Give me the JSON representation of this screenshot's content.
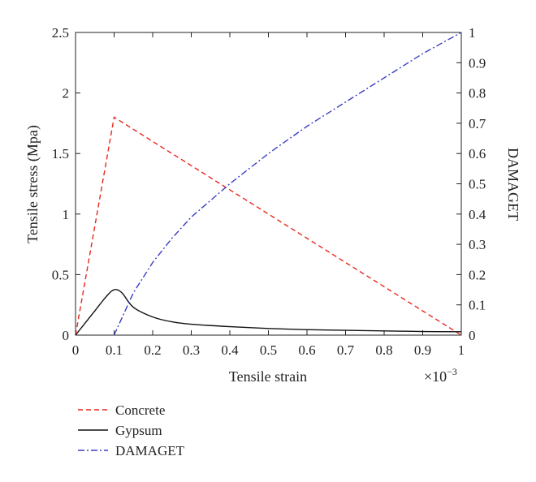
{
  "chart_data": {
    "type": "line",
    "xlabel": "Tensile strain",
    "x_multiplier": "×10",
    "x_multiplier_exp": "−3",
    "ylabel": "Tensile stress (Mpa)",
    "y2label": "DAMAGET",
    "xlim": [
      0,
      1
    ],
    "ylim": [
      0,
      2.5
    ],
    "y2lim": [
      0,
      1
    ],
    "x_ticks": [
      "0",
      "0.1",
      "0.2",
      "0.3",
      "0.4",
      "0.5",
      "0.6",
      "0.7",
      "0.8",
      "0.9",
      "1"
    ],
    "y_ticks": [
      "0",
      "0.5",
      "1",
      "1.5",
      "2",
      "2.5"
    ],
    "y2_ticks": [
      "0",
      "0.1",
      "0.2",
      "0.3",
      "0.4",
      "0.5",
      "0.6",
      "0.7",
      "0.8",
      "0.9",
      "1"
    ],
    "grid": false,
    "legend_position": "below-left",
    "series": [
      {
        "name": "Concrete",
        "axis": "left",
        "color": "#e8261e",
        "style": "dashed",
        "x": [
          0,
          0.1,
          1.0
        ],
        "y": [
          0,
          1.8,
          0.0
        ]
      },
      {
        "name": "Gypsum",
        "axis": "left",
        "color": "#111111",
        "style": "solid",
        "x": [
          0,
          0.02,
          0.05,
          0.08,
          0.1,
          0.12,
          0.15,
          0.2,
          0.25,
          0.3,
          0.4,
          0.5,
          0.6,
          0.7,
          0.8,
          0.9,
          1.0
        ],
        "y": [
          0,
          0.08,
          0.2,
          0.32,
          0.375,
          0.35,
          0.23,
          0.15,
          0.11,
          0.09,
          0.07,
          0.055,
          0.045,
          0.04,
          0.035,
          0.03,
          0.028
        ]
      },
      {
        "name": "DAMAGET",
        "axis": "right",
        "color": "#3b3fc0",
        "style": "dashdot",
        "x": [
          0.1,
          0.15,
          0.2,
          0.25,
          0.3,
          0.4,
          0.5,
          0.6,
          0.7,
          0.8,
          0.9,
          1.0
        ],
        "y": [
          0,
          0.14,
          0.24,
          0.32,
          0.39,
          0.5,
          0.6,
          0.69,
          0.77,
          0.85,
          0.93,
          1.0
        ]
      }
    ]
  }
}
